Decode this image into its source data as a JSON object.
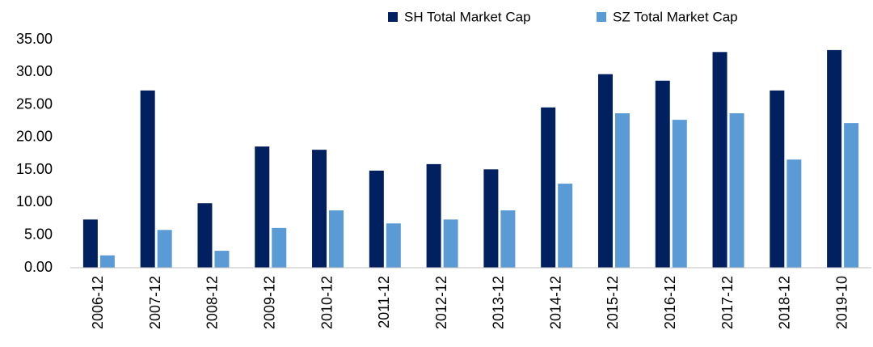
{
  "chart_data": {
    "type": "bar",
    "categories": [
      "2006-12",
      "2007-12",
      "2008-12",
      "2009-12",
      "2010-12",
      "2011-12",
      "2012-12",
      "2013-12",
      "2014-12",
      "2015-12",
      "2016-12",
      "2017-12",
      "2018-12",
      "2019-10"
    ],
    "series": [
      {
        "name": "SH Total Market Cap",
        "color": "#002060",
        "values": [
          7.4,
          27.2,
          9.9,
          18.6,
          18.1,
          14.9,
          15.9,
          15.1,
          24.6,
          29.7,
          28.7,
          33.1,
          27.2,
          33.4
        ]
      },
      {
        "name": "SZ Total Market Cap",
        "color": "#5b9bd5",
        "values": [
          1.9,
          5.8,
          2.6,
          6.1,
          8.8,
          6.8,
          7.4,
          8.8,
          12.9,
          23.7,
          22.7,
          23.7,
          16.6,
          22.2
        ]
      }
    ],
    "ylim": [
      0,
      35
    ],
    "yticks": [
      {
        "value": 0,
        "label": "0.00"
      },
      {
        "value": 5,
        "label": "5.00"
      },
      {
        "value": 10,
        "label": "10.00"
      },
      {
        "value": 15,
        "label": "15.00"
      },
      {
        "value": 20,
        "label": "20.00"
      },
      {
        "value": 25,
        "label": "25.00"
      },
      {
        "value": 30,
        "label": "30.00"
      },
      {
        "value": 35,
        "label": "35.00"
      }
    ],
    "grid": false,
    "legend": "top"
  }
}
